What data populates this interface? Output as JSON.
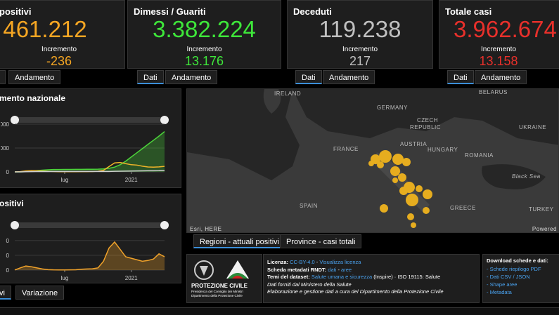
{
  "cards": [
    {
      "title": "positivi",
      "value": "461.212",
      "increment_label": "Incremento",
      "increment": "-236",
      "tabs": [
        "Andamento"
      ]
    },
    {
      "title": "Dimessi / Guariti",
      "value": "3.382.224",
      "increment_label": "Incremento",
      "increment": "13.176",
      "tabs": [
        "Dati",
        "Andamento"
      ]
    },
    {
      "title": "Deceduti",
      "value": "119.238",
      "increment_label": "Incremento",
      "increment": "217",
      "tabs": [
        "Dati",
        "Andamento"
      ]
    },
    {
      "title": "Totale casi",
      "value": "3.962.674",
      "increment_label": "Incremento",
      "increment": "13.158",
      "tabs": [
        "Dati",
        "Andamento"
      ]
    }
  ],
  "charts": [
    {
      "type": "line",
      "title": "mento nazionale",
      "categories": [
        null,
        null,
        null,
        null,
        null,
        null,
        null,
        null,
        null,
        "lug",
        null,
        null,
        null,
        null,
        null,
        null,
        null,
        null,
        null,
        null,
        null,
        "2021",
        null,
        null,
        null,
        null,
        null,
        null
      ],
      "ylim": [
        0,
        4000000
      ],
      "yticks": [
        {
          "value": 0,
          "label": "0"
        },
        {
          "value": 2000000,
          "label": "000"
        },
        {
          "value": 4000000,
          "label": "000"
        }
      ],
      "series": [
        {
          "color": "#4cd43a",
          "area": true,
          "values": [
            0,
            2000,
            20000,
            60000,
            110000,
            150000,
            180000,
            195000,
            200000,
            205000,
            208000,
            210000,
            213000,
            217000,
            222000,
            230000,
            250000,
            300000,
            400000,
            600000,
            900000,
            1250000,
            1600000,
            1950000,
            2300000,
            2650000,
            3000000,
            3380000
          ]
        },
        {
          "color": "#f0b429",
          "values": [
            300,
            20000,
            80000,
            105000,
            95000,
            70000,
            50000,
            30000,
            18000,
            13000,
            12500,
            14000,
            20000,
            25000,
            32000,
            50000,
            130000,
            450000,
            750000,
            790000,
            690000,
            600000,
            570000,
            480000,
            415000,
            400000,
            420000,
            461212
          ]
        },
        {
          "color": "#cfcfcf",
          "values": [
            7,
            2000,
            12000,
            23000,
            28000,
            32000,
            33000,
            34000,
            34700,
            35000,
            35100,
            35200,
            35400,
            35500,
            35700,
            36000,
            37000,
            40000,
            48000,
            57000,
            66000,
            72000,
            78000,
            86000,
            92000,
            96000,
            100000,
            119238
          ]
        }
      ]
    },
    {
      "type": "line",
      "title": "ositivi",
      "categories": [
        null,
        null,
        null,
        null,
        null,
        null,
        null,
        null,
        null,
        "lug",
        null,
        null,
        null,
        null,
        null,
        null,
        null,
        null,
        null,
        null,
        null,
        "2021",
        null,
        null,
        null,
        null,
        null,
        null
      ],
      "ylim": [
        0,
        55000
      ],
      "yticks": [
        {
          "value": 0,
          "label": "0"
        },
        {
          "value": 20000,
          "label": "0"
        },
        {
          "value": 40000,
          "label": "0"
        }
      ],
      "series": [
        {
          "color": "#f0a22a",
          "area": true,
          "values": [
            200,
            3000,
            5500,
            4500,
            3000,
            1500,
            600,
            300,
            200,
            250,
            300,
            500,
            1200,
            1500,
            1800,
            3000,
            12000,
            30000,
            38000,
            28000,
            18000,
            16000,
            14000,
            12000,
            13000,
            15000,
            22000,
            18000
          ]
        }
      ],
      "tabs": [
        "vi",
        "Variazione"
      ]
    }
  ],
  "map": {
    "labels": [
      "IRELAND",
      "GERMANY",
      "CZECH",
      "REPUBLIC",
      "FRANCE",
      "AUSTRIA",
      "HUNGARY",
      "UKRAINE",
      "BELARUS",
      "ROMANIA",
      "SPAIN",
      "GREECE",
      "TURKEY",
      "Black Sea"
    ],
    "attribution": "Esri, HERE",
    "powered": "Powered",
    "tabs": [
      "Regioni - attuali positivi",
      "Province - casi totali"
    ]
  },
  "footer": {
    "logo_title": "PROTEZIONE CIVILE",
    "logo_sub1": "Presidenza del Consiglio dei Ministri",
    "logo_sub2": "Dipartimento della Protezione Civile",
    "licenza_label": "Licenza:",
    "licenza": "CC-BY-4.0",
    "licenza_sep": " - ",
    "licenza_link": "Visualizza licenza",
    "scheda_label": "Scheda metadati RNDT:",
    "scheda_dati": "dati",
    "scheda_sep": " - ",
    "scheda_aree": "aree",
    "temi_label": "Temi del dataset:",
    "temi": "Salute umana e sicurezza",
    "temi_rest": "(Inspire) · ISO 19115: Salute",
    "fonte": "Dati forniti dal Ministero della Salute",
    "elaborazione": "Elaborazione e gestione dati a cura del Dipartimento della Protezione Civile",
    "download_title": "Download schede e dati:",
    "downloads": [
      "- Schede riepilogo PDF",
      "- Dati CSV / JSON",
      "- Shape aree",
      "- Metadata"
    ]
  }
}
